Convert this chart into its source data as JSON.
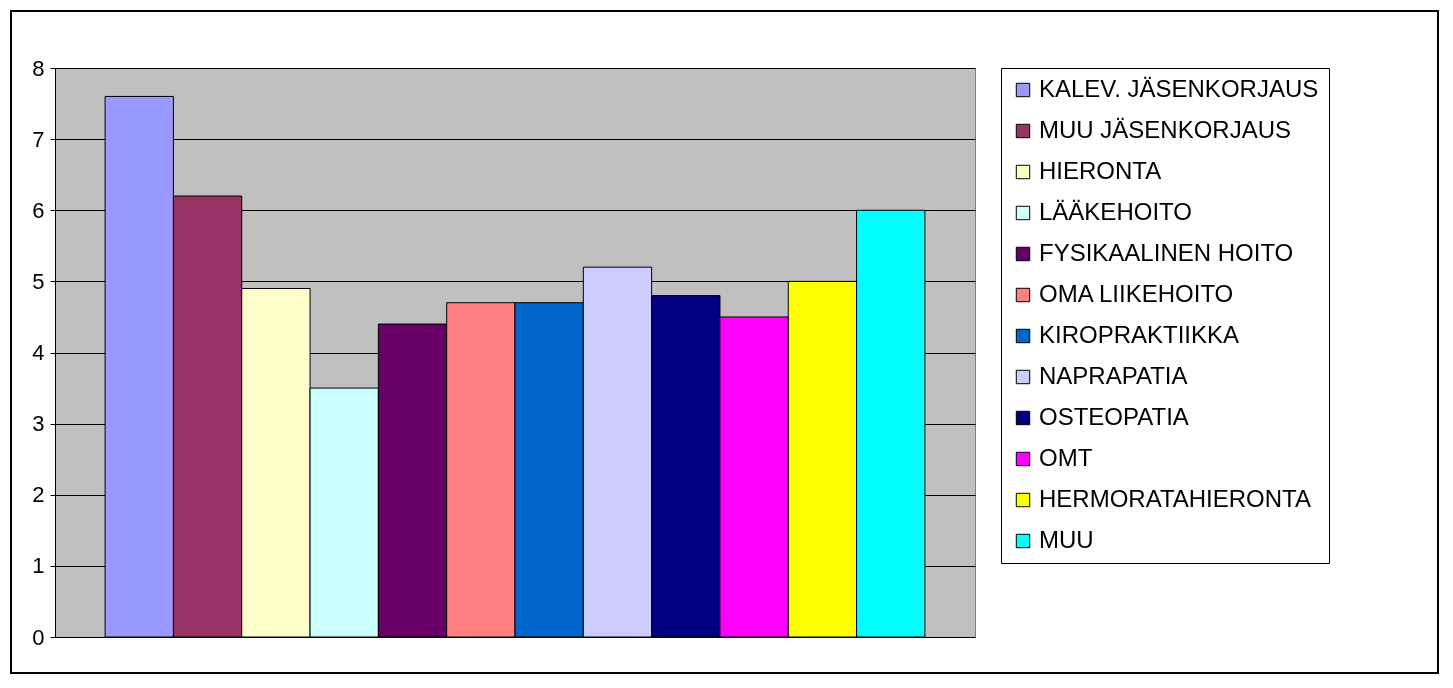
{
  "chart_data": {
    "type": "bar",
    "categories": [
      null
    ],
    "ylim": [
      0,
      8
    ],
    "yticks": [
      0,
      1,
      2,
      3,
      4,
      5,
      6,
      7,
      8
    ],
    "grid": "y",
    "legend": "right",
    "series": [
      {
        "name": "KALEV. JÄSENKORJAUS",
        "color": "#9999ff",
        "values": [
          7.6
        ]
      },
      {
        "name": "MUU JÄSENKORJAUS",
        "color": "#993366",
        "values": [
          6.2
        ]
      },
      {
        "name": "HIERONTA",
        "color": "#ffffcc",
        "values": [
          4.9
        ]
      },
      {
        "name": "LÄÄKEHOITO",
        "color": "#ccffff",
        "values": [
          3.5
        ]
      },
      {
        "name": "FYSIKAALINEN HOITO",
        "color": "#660066",
        "values": [
          4.4
        ]
      },
      {
        "name": "OMA LIIKEHOITO",
        "color": "#ff8080",
        "values": [
          4.7
        ]
      },
      {
        "name": "KIROPRAKTIIKKA",
        "color": "#0066cc",
        "values": [
          4.7
        ]
      },
      {
        "name": "NAPRAPATIA",
        "color": "#ccccff",
        "values": [
          5.2
        ]
      },
      {
        "name": "OSTEOPATIA",
        "color": "#000080",
        "values": [
          4.8
        ]
      },
      {
        "name": "OMT",
        "color": "#ff00ff",
        "values": [
          4.5
        ]
      },
      {
        "name": "HERMORATAHIERONTA",
        "color": "#ffff00",
        "values": [
          5.0
        ]
      },
      {
        "name": "MUU",
        "color": "#00ffff",
        "values": [
          6.0
        ]
      }
    ]
  }
}
